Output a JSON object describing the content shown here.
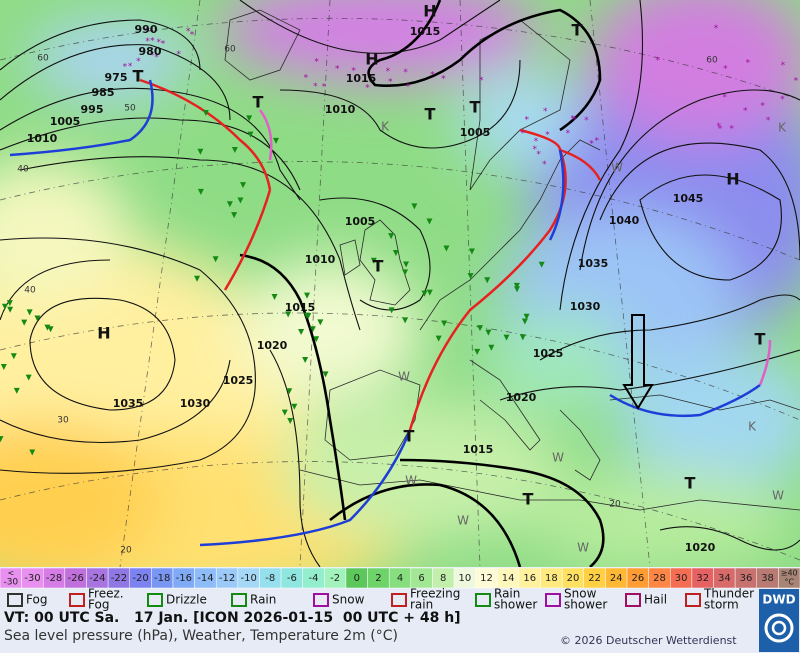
{
  "map": {
    "isobar_labels": [
      990,
      980,
      975,
      985,
      995,
      1005,
      1010,
      1015,
      1015,
      1010,
      1005,
      1005,
      1010,
      1015,
      1020,
      1025,
      1030,
      1035,
      1045,
      1040,
      1035,
      1030,
      1025,
      1020,
      1015,
      1020
    ],
    "pressure_centers": [
      "H",
      "H",
      "T",
      "T",
      "T",
      "T",
      "T",
      "H",
      "H",
      "T",
      "T",
      "T",
      "T",
      "T"
    ],
    "temperature_labels": [
      60,
      60,
      50,
      40,
      40,
      30,
      20,
      60,
      20
    ],
    "markers": [
      "K",
      "K",
      "K",
      "W",
      "W",
      "W",
      "W",
      "W",
      "W",
      "W"
    ]
  },
  "color_scale": {
    "min_label": [
      "<",
      "-30"
    ],
    "max_label": [
      "≥40",
      "°C"
    ],
    "steps": [
      {
        "value": -30,
        "color": "#e890f0"
      },
      {
        "value": -28,
        "color": "#d67ce6"
      },
      {
        "value": -26,
        "color": "#c070dc"
      },
      {
        "value": -24,
        "color": "#a874e0"
      },
      {
        "value": -22,
        "color": "#9078e4"
      },
      {
        "value": -20,
        "color": "#7c82f0"
      },
      {
        "value": -18,
        "color": "#7896f2"
      },
      {
        "value": -16,
        "color": "#80aaf6"
      },
      {
        "value": -14,
        "color": "#8ebcf8"
      },
      {
        "value": -12,
        "color": "#9ccaf8"
      },
      {
        "value": -10,
        "color": "#a4d8f6"
      },
      {
        "value": -8,
        "color": "#96e0ee"
      },
      {
        "value": -6,
        "color": "#8ee6de"
      },
      {
        "value": -4,
        "color": "#92eecc"
      },
      {
        "value": -2,
        "color": "#a2f2bc"
      },
      {
        "value": 0,
        "color": "#5cc85c"
      },
      {
        "value": 2,
        "color": "#6ed46a"
      },
      {
        "value": 4,
        "color": "#86de7e"
      },
      {
        "value": 6,
        "color": "#a2e894"
      },
      {
        "value": 8,
        "color": "#c2f0ac"
      },
      {
        "value": 10,
        "color": "#eef8dc"
      },
      {
        "value": 12,
        "color": "#fffbd6"
      },
      {
        "value": 14,
        "color": "#fff8bc"
      },
      {
        "value": 16,
        "color": "#fff19e"
      },
      {
        "value": 18,
        "color": "#ffea80"
      },
      {
        "value": 20,
        "color": "#ffe060"
      },
      {
        "value": 22,
        "color": "#ffcf44"
      },
      {
        "value": 24,
        "color": "#ffb834"
      },
      {
        "value": 26,
        "color": "#ff9c34"
      },
      {
        "value": 28,
        "color": "#ff8644"
      },
      {
        "value": 30,
        "color": "#f56e54"
      },
      {
        "value": 32,
        "color": "#e66262"
      },
      {
        "value": 34,
        "color": "#d86a6a"
      },
      {
        "value": 36,
        "color": "#c87270"
      },
      {
        "value": 38,
        "color": "#b87a72"
      }
    ],
    "max_color": "#a88474"
  },
  "legend": [
    [
      "Fog"
    ],
    [
      "Freez.",
      "Fog"
    ],
    [
      "Drizzle"
    ],
    [
      "Rain"
    ],
    [
      "Snow"
    ],
    [
      "Freezing",
      "rain"
    ],
    [
      "Rain",
      "shower"
    ],
    [
      "Snow",
      "shower"
    ],
    [
      "Hail"
    ],
    [
      "Thunder",
      "storm"
    ]
  ],
  "footer": {
    "valid_time": "VT: 00 UTC Sa.   17 Jan. [ICON 2026-01-15  00 UTC + 48 h]",
    "description": "Sea level pressure (hPa), Weather, Temperature 2m (°C)",
    "copyright": "© 2026 Deutscher Wetterdienst",
    "logo": "DWD"
  }
}
